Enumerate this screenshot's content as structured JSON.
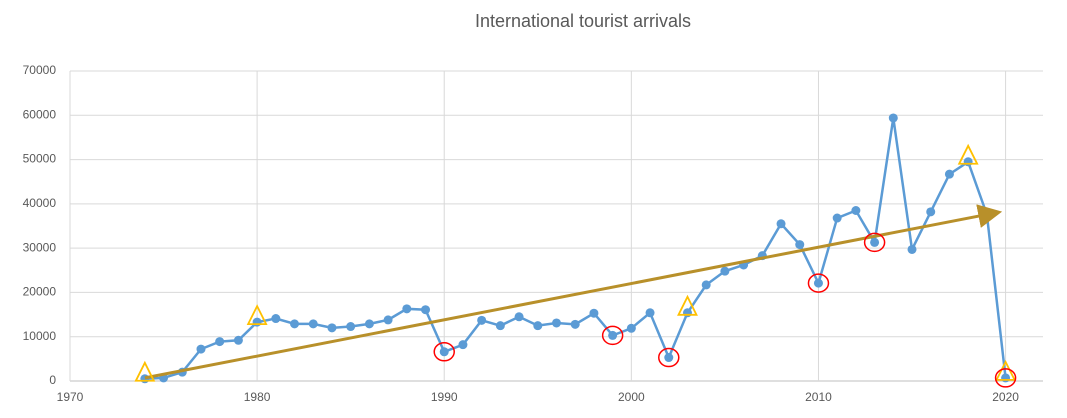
{
  "chart_data": {
    "type": "line",
    "title": "International tourist arrivals",
    "x": [
      1974,
      1975,
      1976,
      1977,
      1978,
      1979,
      1980,
      1981,
      1982,
      1983,
      1984,
      1985,
      1986,
      1987,
      1988,
      1989,
      1990,
      1991,
      1992,
      1993,
      1994,
      1995,
      1996,
      1997,
      1998,
      1999,
      2000,
      2001,
      2002,
      2003,
      2004,
      2005,
      2006,
      2007,
      2008,
      2009,
      2010,
      2011,
      2012,
      2013,
      2014,
      2015,
      2016,
      2017,
      2018,
      2019,
      2020
    ],
    "series": [
      {
        "color": "#5b9bd5",
        "values": [
          500,
          700,
          2000,
          7200,
          8900,
          9200,
          13300,
          14100,
          12900,
          12900,
          12000,
          12300,
          12900,
          13800,
          16300,
          16100,
          6600,
          8200,
          13700,
          12500,
          14500,
          12500,
          13100,
          12800,
          15300,
          10300,
          11900,
          15400,
          5300,
          15400,
          21700,
          24800,
          26200,
          28300,
          35500,
          30800,
          22100,
          36800,
          38500,
          31300,
          59400,
          29700,
          38200,
          46700,
          49500,
          37600,
          700
        ]
      }
    ],
    "trend": {
      "color": "#b8902a",
      "x": [
        1974,
        2019.5
      ],
      "y": [
        700,
        38000
      ]
    },
    "triangles": {
      "color": "#ffc000",
      "x": [
        1974,
        1980,
        2003,
        2018,
        2020
      ]
    },
    "circles": {
      "color": "#ff0000",
      "x": [
        1990,
        1999,
        2002,
        2010,
        2013,
        2020
      ]
    },
    "xlim": [
      1970,
      2022
    ],
    "xticks": [
      1970,
      1980,
      1990,
      2000,
      2010,
      2020
    ],
    "ylim": [
      0,
      70000
    ],
    "yticks": [
      0,
      10000,
      20000,
      30000,
      40000,
      50000,
      60000,
      70000
    ],
    "grid": true
  }
}
